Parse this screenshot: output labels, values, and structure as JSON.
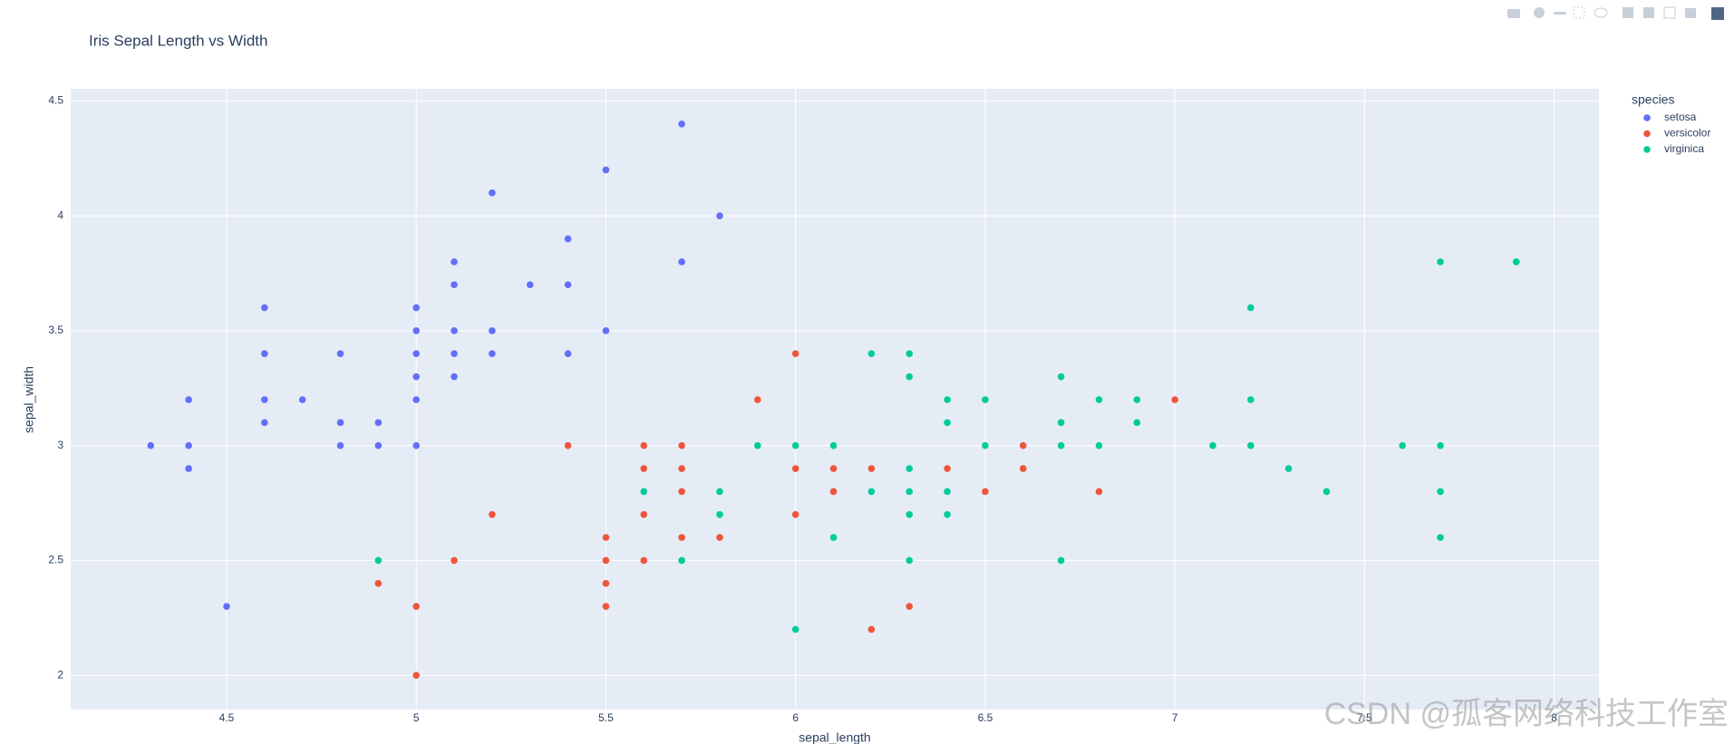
{
  "chart_data": {
    "type": "scatter",
    "title": "Iris Sepal Length vs Width",
    "x_label": "sepal_length",
    "y_label": "sepal_width",
    "legend_title": "species",
    "watermark": "CSDN @孤客网络科技工作室",
    "xlim": [
      4.089,
      8.118
    ],
    "ylim": [
      1.851,
      4.553
    ],
    "xticks": [
      4.5,
      5,
      5.5,
      6,
      6.5,
      7,
      7.5,
      8
    ],
    "yticks": [
      2,
      2.5,
      3,
      3.5,
      4,
      4.5
    ],
    "grid": true,
    "legend": "right",
    "background": "#e5ecf6",
    "series": [
      {
        "name": "setosa",
        "color": "#636efa",
        "x": [
          4.3,
          4.4,
          4.4,
          4.4,
          4.5,
          4.6,
          4.6,
          4.6,
          4.6,
          4.7,
          4.8,
          4.8,
          4.8,
          4.9,
          4.9,
          5.0,
          5.0,
          5.0,
          5.0,
          5.0,
          5.0,
          5.1,
          5.1,
          5.1,
          5.1,
          5.1,
          5.2,
          5.2,
          5.2,
          5.3,
          5.4,
          5.4,
          5.4,
          5.5,
          5.5,
          5.7,
          5.7,
          5.8
        ],
        "y": [
          3.0,
          2.9,
          3.0,
          3.2,
          2.3,
          3.1,
          3.2,
          3.4,
          3.6,
          3.2,
          3.0,
          3.1,
          3.4,
          3.0,
          3.1,
          3.0,
          3.2,
          3.3,
          3.4,
          3.5,
          3.6,
          3.3,
          3.4,
          3.5,
          3.7,
          3.8,
          3.4,
          3.5,
          4.1,
          3.7,
          3.4,
          3.7,
          3.9,
          3.5,
          4.2,
          3.8,
          4.4,
          4.0
        ]
      },
      {
        "name": "versicolor",
        "color": "#EF553B",
        "x": [
          4.9,
          5.0,
          5.0,
          5.1,
          5.2,
          5.4,
          5.5,
          5.5,
          5.5,
          5.5,
          5.6,
          5.6,
          5.6,
          5.6,
          5.7,
          5.7,
          5.7,
          5.7,
          5.8,
          5.9,
          6.0,
          6.0,
          6.0,
          6.1,
          6.1,
          6.2,
          6.2,
          6.3,
          6.4,
          6.5,
          6.6,
          6.6,
          6.8,
          7.0
        ],
        "y": [
          2.4,
          2.0,
          2.3,
          2.5,
          2.7,
          3.0,
          2.3,
          2.4,
          2.5,
          2.6,
          2.5,
          2.7,
          2.9,
          3.0,
          2.6,
          2.8,
          2.9,
          3.0,
          2.6,
          3.2,
          2.7,
          2.9,
          3.4,
          2.8,
          2.9,
          2.2,
          2.9,
          2.3,
          2.9,
          2.8,
          2.9,
          3.0,
          2.8,
          3.2
        ]
      },
      {
        "name": "virginica",
        "color": "#00cc96",
        "x": [
          4.9,
          5.6,
          5.7,
          5.8,
          5.8,
          5.9,
          6.0,
          6.0,
          6.1,
          6.1,
          6.2,
          6.2,
          6.3,
          6.3,
          6.3,
          6.3,
          6.3,
          6.3,
          6.4,
          6.4,
          6.4,
          6.4,
          6.5,
          6.5,
          6.7,
          6.7,
          6.7,
          6.7,
          6.8,
          6.8,
          6.9,
          6.9,
          7.1,
          7.2,
          7.2,
          7.2,
          7.3,
          7.4,
          7.6,
          7.7,
          7.7,
          7.7,
          7.7,
          7.9
        ],
        "y": [
          2.5,
          2.8,
          2.5,
          2.7,
          2.8,
          3.0,
          2.2,
          3.0,
          2.6,
          3.0,
          2.8,
          3.4,
          2.5,
          2.7,
          2.8,
          2.9,
          3.3,
          3.4,
          2.7,
          2.8,
          3.1,
          3.2,
          3.0,
          3.2,
          2.5,
          3.0,
          3.1,
          3.3,
          3.0,
          3.2,
          3.1,
          3.2,
          3.0,
          3.0,
          3.2,
          3.6,
          2.9,
          2.8,
          3.0,
          2.6,
          2.8,
          3.0,
          3.8,
          3.8
        ]
      }
    ]
  }
}
